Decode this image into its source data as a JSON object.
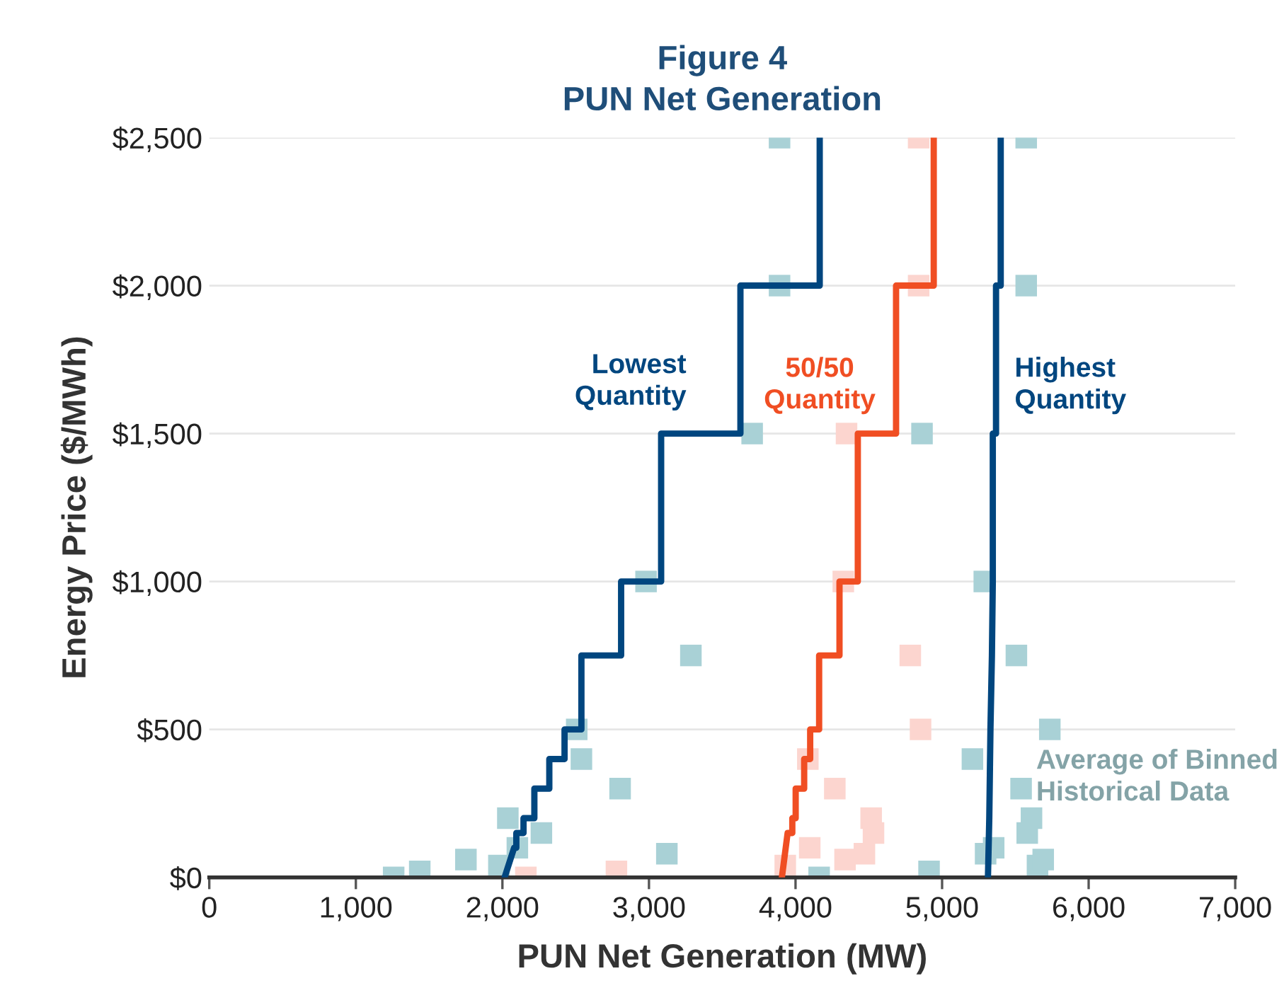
{
  "chart_data": {
    "type": "line",
    "title": "Figure 4\nPUN Net Generation",
    "xlabel": "PUN Net Generation (MW)",
    "ylabel": "Energy Price ($/MWh)",
    "xlim": [
      0,
      7000
    ],
    "xticks": [
      {
        "value": 0,
        "label": "0"
      },
      {
        "value": 1000,
        "label": "1,000"
      },
      {
        "value": 2000,
        "label": "2,000"
      },
      {
        "value": 3000,
        "label": "3,000"
      },
      {
        "value": 4000,
        "label": "4,000"
      },
      {
        "value": 5000,
        "label": "5,000"
      },
      {
        "value": 6000,
        "label": "6,000"
      },
      {
        "value": 7000,
        "label": "7,000"
      }
    ],
    "ylim": [
      0,
      2500
    ],
    "yticks": [
      {
        "value": 0,
        "label": "$0"
      },
      {
        "value": 500,
        "label": "$500"
      },
      {
        "value": 1000,
        "label": "$1,000"
      },
      {
        "value": 1500,
        "label": "$1,500"
      },
      {
        "value": 2000,
        "label": "$2,000"
      },
      {
        "value": 2500,
        "label": "$2,500"
      }
    ],
    "grid": "y",
    "legend": false,
    "marker": "none",
    "line_style": "solid",
    "series": [
      {
        "type": "scatter",
        "marker": "square",
        "color": "#fcd5cf",
        "x": [
          2160,
          2778,
          3930,
          4097,
          4084,
          4268,
          4516,
          4532,
          4338,
          4470,
          4783,
          4853,
          4326,
          4840,
          4840,
          4348
        ],
        "values": [
          0,
          20,
          40,
          100,
          400,
          300,
          200,
          150,
          60,
          80,
          750,
          500,
          1000,
          2500,
          2000,
          1500
        ]
      },
      {
        "type": "scatter",
        "marker": "square",
        "name": "Average of Binned\nHistorical Data",
        "color": "#a9d1d6",
        "x": [
          1258,
          1436,
          1751,
          1976,
          2102,
          2037,
          2266,
          2507,
          2539,
          2803,
          3122,
          2980,
          3286,
          4161,
          4911,
          5207,
          5288,
          5507,
          5735,
          5539,
          5610,
          5581,
          5297,
          5352,
          5651,
          5690,
          3891,
          3891,
          3704,
          4863,
          5574,
          5574
        ],
        "values": [
          0,
          20,
          60,
          40,
          100,
          200,
          150,
          500,
          400,
          300,
          80,
          1000,
          750,
          0,
          20,
          400,
          1000,
          750,
          500,
          300,
          200,
          150,
          80,
          100,
          40,
          60,
          2500,
          2000,
          1500,
          1500,
          2500,
          2000
        ]
      },
      {
        "name": "Lowest\nQuantity",
        "color": "#00467f",
        "x": [
          2015,
          2080,
          2095,
          2095,
          2144,
          2144,
          2218,
          2218,
          2320,
          2320,
          2424,
          2424,
          2539,
          2539,
          2810,
          2810,
          3083,
          3083,
          3624,
          3624,
          4165,
          4165
        ],
        "values": [
          0,
          100,
          100,
          150,
          150,
          200,
          200,
          300,
          300,
          400,
          400,
          500,
          500,
          750,
          750,
          1000,
          1000,
          1500,
          1500,
          2000,
          2000,
          2500
        ]
      },
      {
        "name": "50/50\nQuantity",
        "color": "#f04e23",
        "x": [
          3907,
          3946,
          3978,
          3978,
          4001,
          4001,
          4059,
          4059,
          4100,
          4100,
          4161,
          4161,
          4300,
          4300,
          4425,
          4425,
          4686,
          4686,
          4943,
          4943
        ],
        "values": [
          0,
          150,
          150,
          200,
          200,
          300,
          300,
          400,
          400,
          500,
          500,
          750,
          750,
          1000,
          1000,
          1500,
          1500,
          2000,
          2000,
          2500
        ]
      },
      {
        "name": "Highest\nQuantity",
        "color": "#00467f",
        "x": [
          5313,
          5322,
          5330,
          5340,
          5346,
          5346,
          5368,
          5368,
          5400,
          5400
        ],
        "values": [
          0,
          200,
          500,
          750,
          1000,
          1500,
          1500,
          2000,
          2000,
          2500
        ]
      }
    ]
  }
}
